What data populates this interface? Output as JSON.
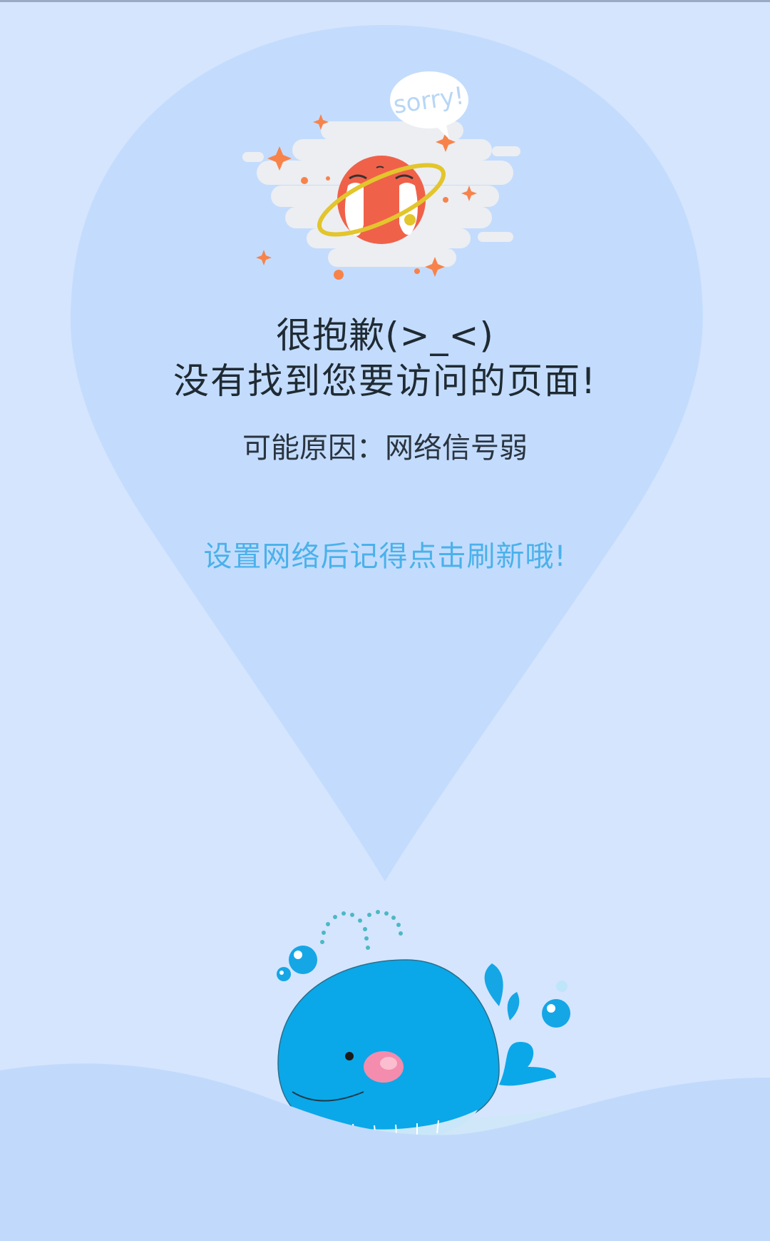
{
  "colors": {
    "background": "#d5e5fd",
    "drop": "#c3dcfd",
    "sea": "#c1dafc",
    "accent_link": "#4ab1ea",
    "whale": "#0aa8e8",
    "planet": "#f0614a"
  },
  "illustration": {
    "bubble_text": "sorry!"
  },
  "message": {
    "line1": "很抱歉(>_<)",
    "line2": "没有找到您要访问的页面!",
    "reason": "可能原因：网络信号弱"
  },
  "action": {
    "refresh_hint": "设置网络后记得点击刷新哦!"
  },
  "icons": {
    "planet": "crying-planet-icon",
    "whale": "whale-icon"
  }
}
